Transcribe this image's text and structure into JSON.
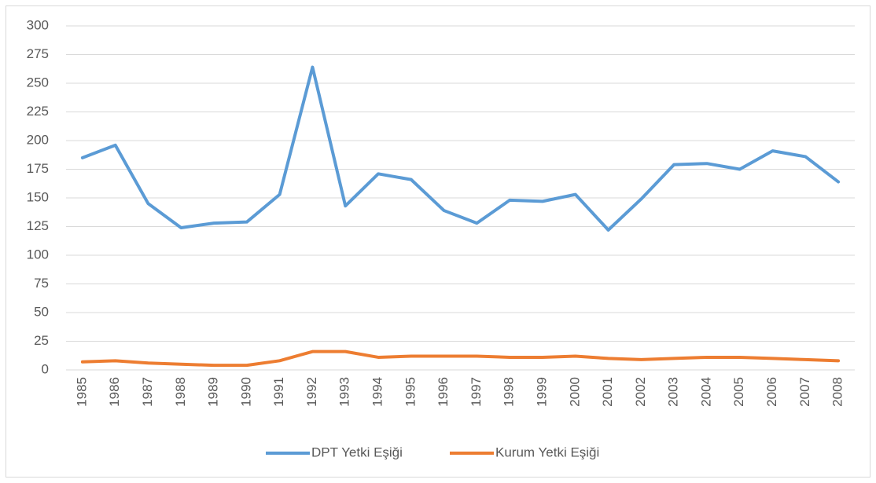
{
  "chart_data": {
    "type": "line",
    "categories": [
      "1985",
      "1986",
      "1987",
      "1988",
      "1989",
      "1990",
      "1991",
      "1992",
      "1993",
      "1994",
      "1995",
      "1996",
      "1997",
      "1998",
      "1999",
      "2000",
      "2001",
      "2002",
      "2003",
      "2004",
      "2005",
      "2006",
      "2007",
      "2008"
    ],
    "series": [
      {
        "name": "DPT Yetki Eşiği",
        "color": "#5b9bd5",
        "values": [
          185,
          196,
          145,
          124,
          128,
          129,
          153,
          264,
          143,
          171,
          166,
          139,
          128,
          148,
          147,
          153,
          122,
          149,
          179,
          180,
          175,
          191,
          186,
          164
        ]
      },
      {
        "name": "Kurum Yetki Eşiği",
        "color": "#ed7d31",
        "values": [
          7,
          8,
          6,
          5,
          4,
          4,
          8,
          16,
          16,
          11,
          12,
          12,
          12,
          11,
          11,
          12,
          10,
          9,
          10,
          11,
          11,
          10,
          9,
          8
        ]
      }
    ],
    "ylim": [
      0,
      300
    ],
    "yticks": [
      0,
      25,
      50,
      75,
      100,
      125,
      150,
      175,
      200,
      225,
      250,
      275,
      300
    ],
    "grid": true,
    "legend": "bottom"
  }
}
